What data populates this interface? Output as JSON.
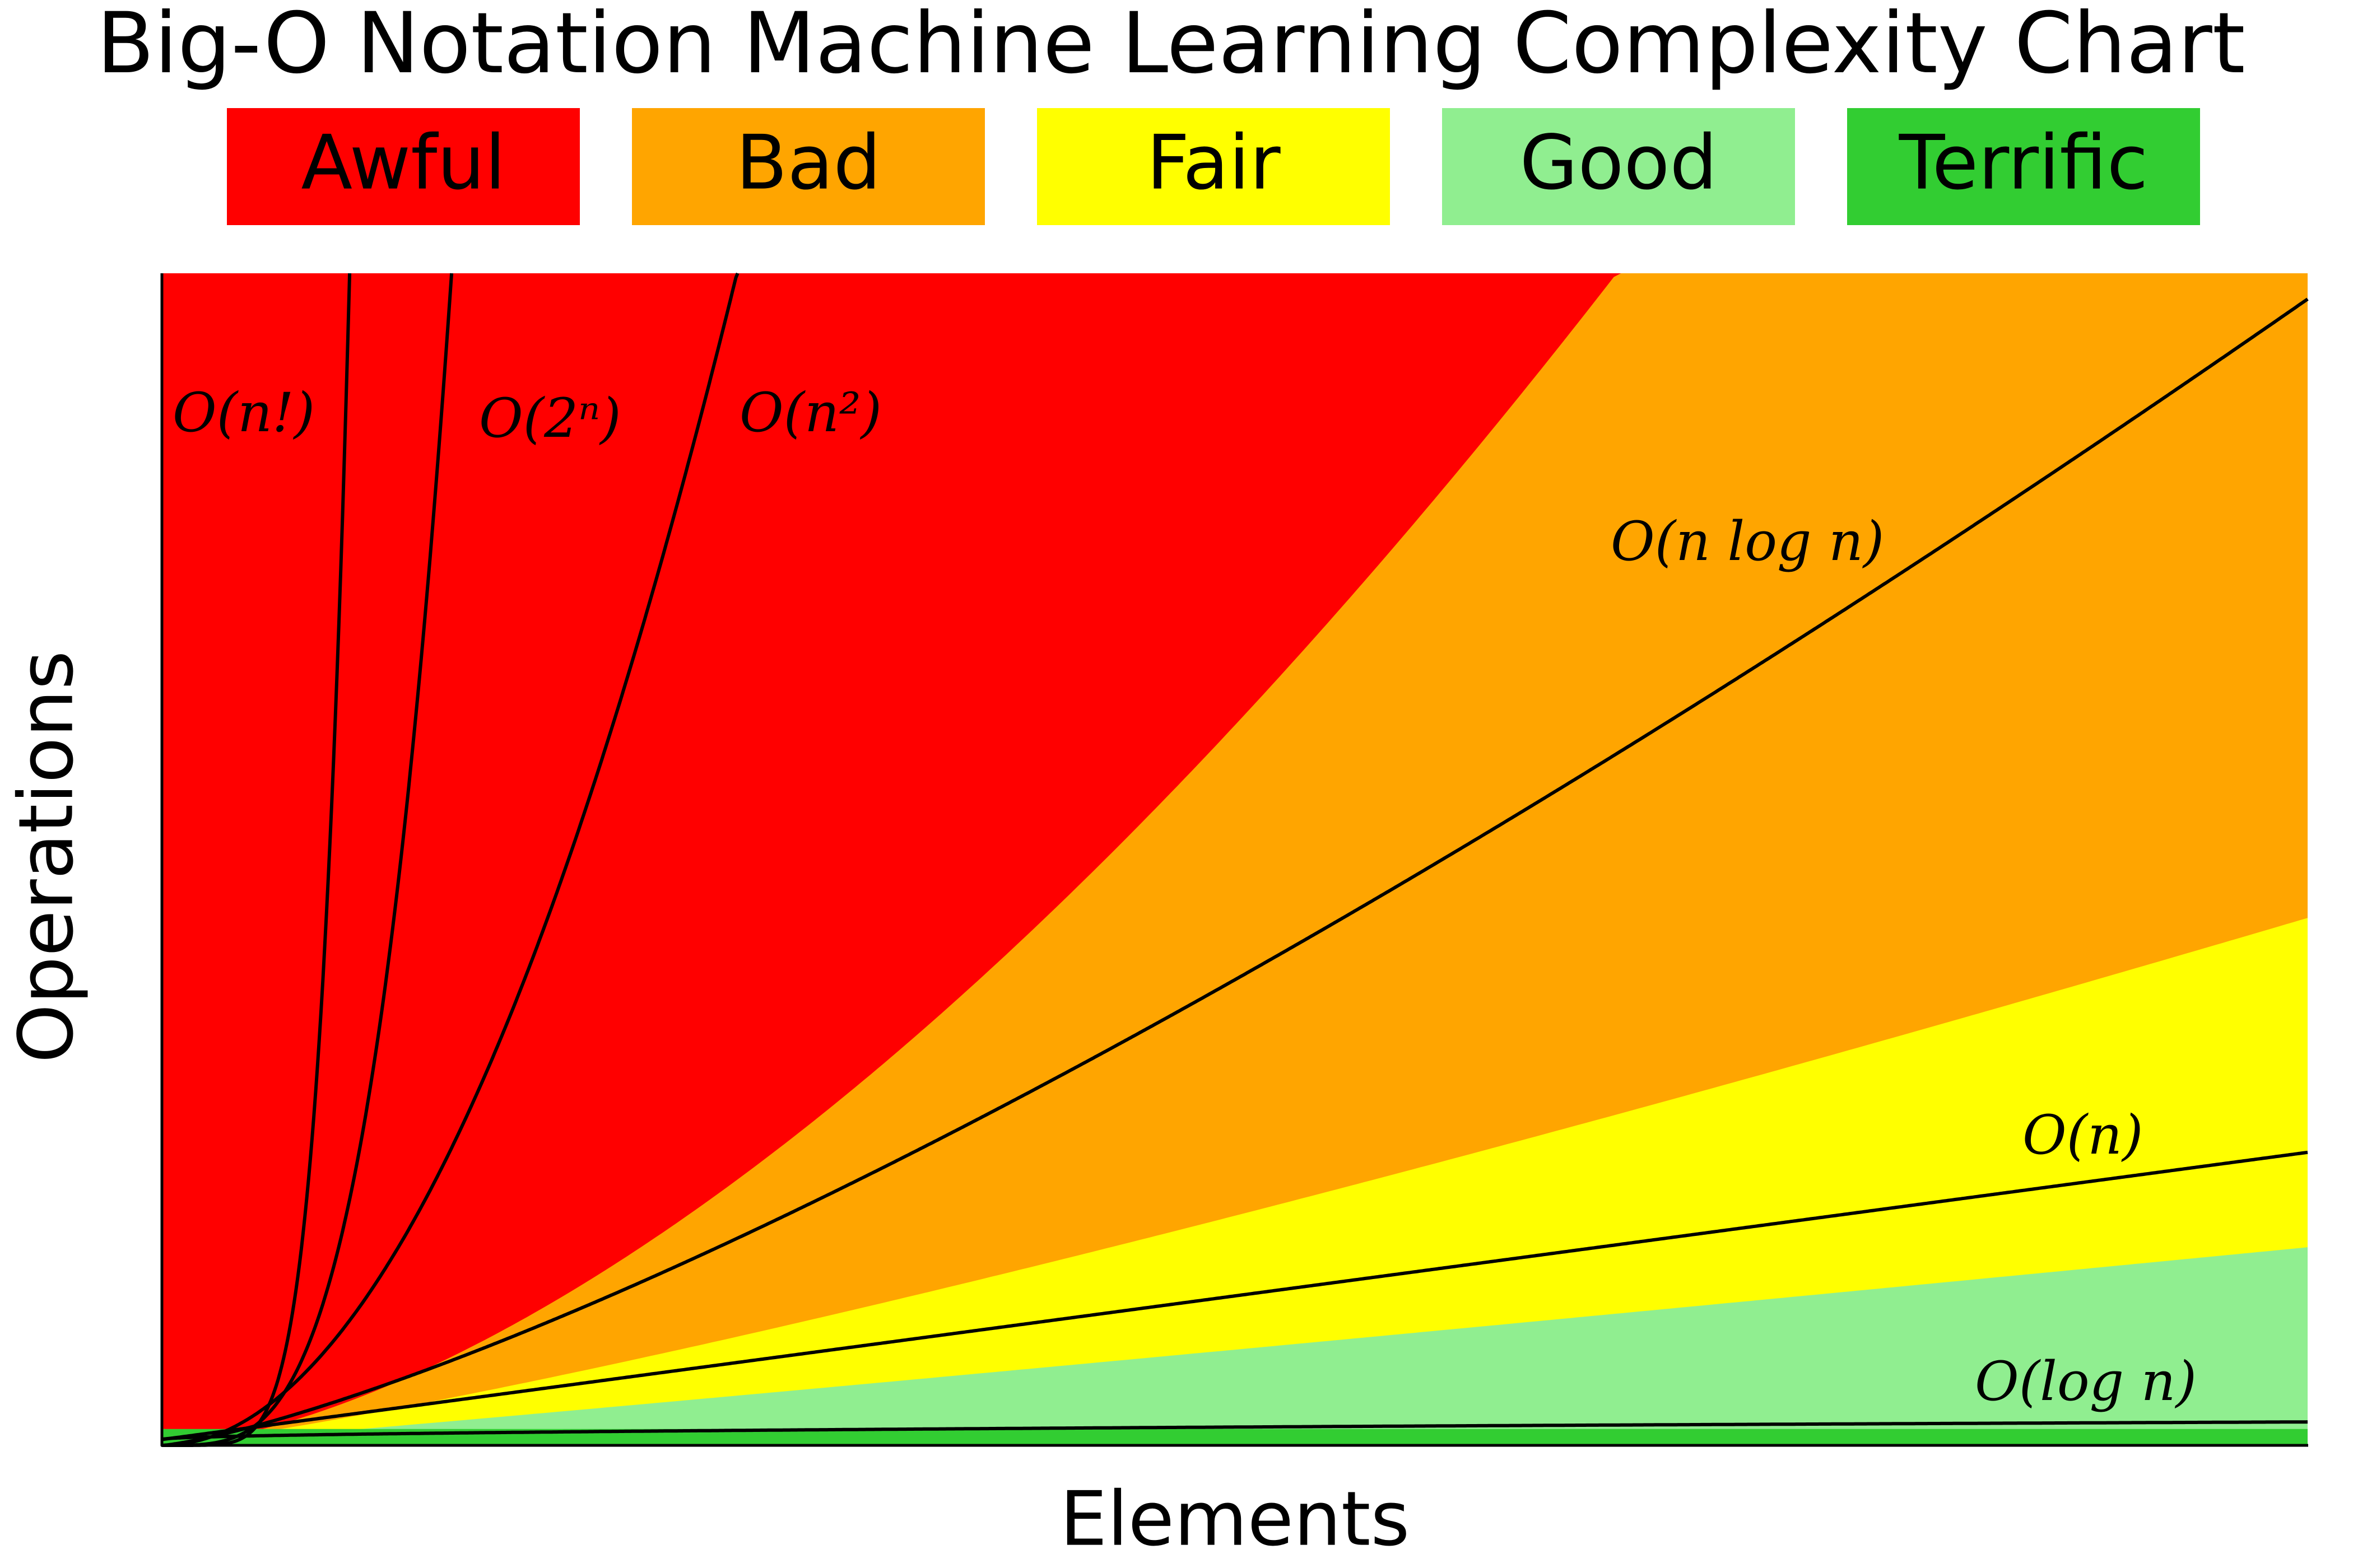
{
  "title": "Big-O Notation Machine Learning Complexity Chart",
  "legend": [
    {
      "label": "Awful",
      "color": "#ff0000"
    },
    {
      "label": "Bad",
      "color": "#ffa500"
    },
    {
      "label": "Fair",
      "color": "#ffff00"
    },
    {
      "label": "Good",
      "color": "#90ee90"
    },
    {
      "label": "Terrific",
      "color": "#32cd32"
    }
  ],
  "curves": [
    {
      "label": "O(n!)"
    },
    {
      "label": "O(2ⁿ)"
    },
    {
      "label": "O(n²)"
    },
    {
      "label": "O(n log n)"
    },
    {
      "label": "O(n)"
    },
    {
      "label": "O(log n)"
    }
  ],
  "x_axis_label": "Elements",
  "y_axis_label": "Operations"
}
